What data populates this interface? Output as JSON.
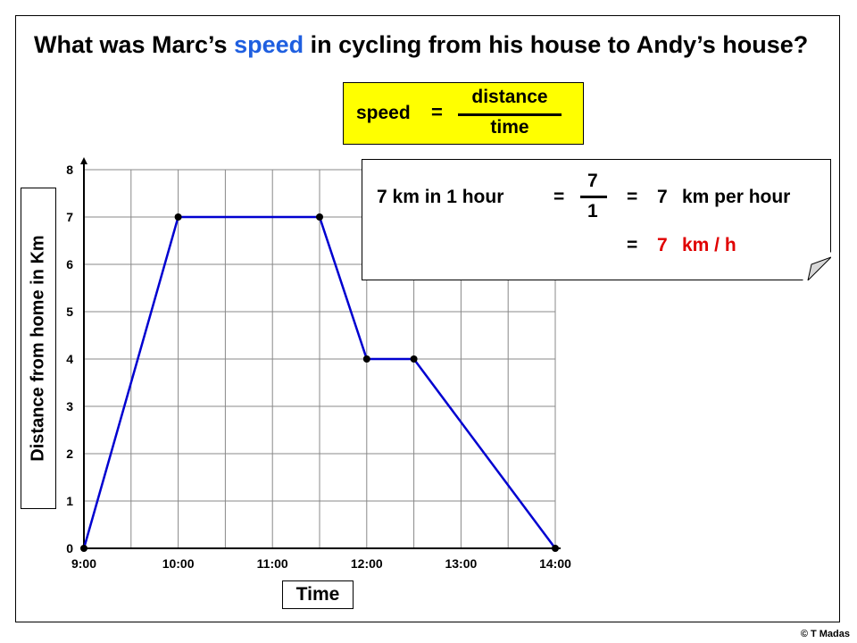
{
  "question": {
    "part1": "What was Marc’s",
    "highlight": "speed",
    "part2": "in cycling from his house to Andy’s house?"
  },
  "formula": {
    "lhs": "speed",
    "equals": "=",
    "numerator": "distance",
    "denominator": "time"
  },
  "callout": {
    "line1_text": "7 km in 1 hour",
    "equals": "=",
    "frac_num": "7",
    "frac_den": "1",
    "result_value": "7",
    "result_units": "km per hour",
    "line2_value": "7",
    "line2_units": "km / h"
  },
  "copyright": "© T Madas",
  "chart_data": {
    "type": "line",
    "xlabel": "Time",
    "ylabel": "Distance from home in Km",
    "x_ticks": [
      "9:00",
      "10:00",
      "11:00",
      "12:00",
      "13:00",
      "14:00"
    ],
    "xlim": [
      "9:00",
      "14:00"
    ],
    "y_ticks": [
      0,
      1,
      2,
      3,
      4,
      5,
      6,
      7,
      8
    ],
    "ylim": [
      0,
      8
    ],
    "grid": true,
    "series": [
      {
        "color": "#0000d0",
        "points": [
          {
            "x": "9:00",
            "y": 0
          },
          {
            "x": "10:00",
            "y": 7
          },
          {
            "x": "11:30",
            "y": 7
          },
          {
            "x": "12:00",
            "y": 4
          },
          {
            "x": "12:30",
            "y": 4
          },
          {
            "x": "14:00",
            "y": 0
          }
        ]
      }
    ]
  }
}
